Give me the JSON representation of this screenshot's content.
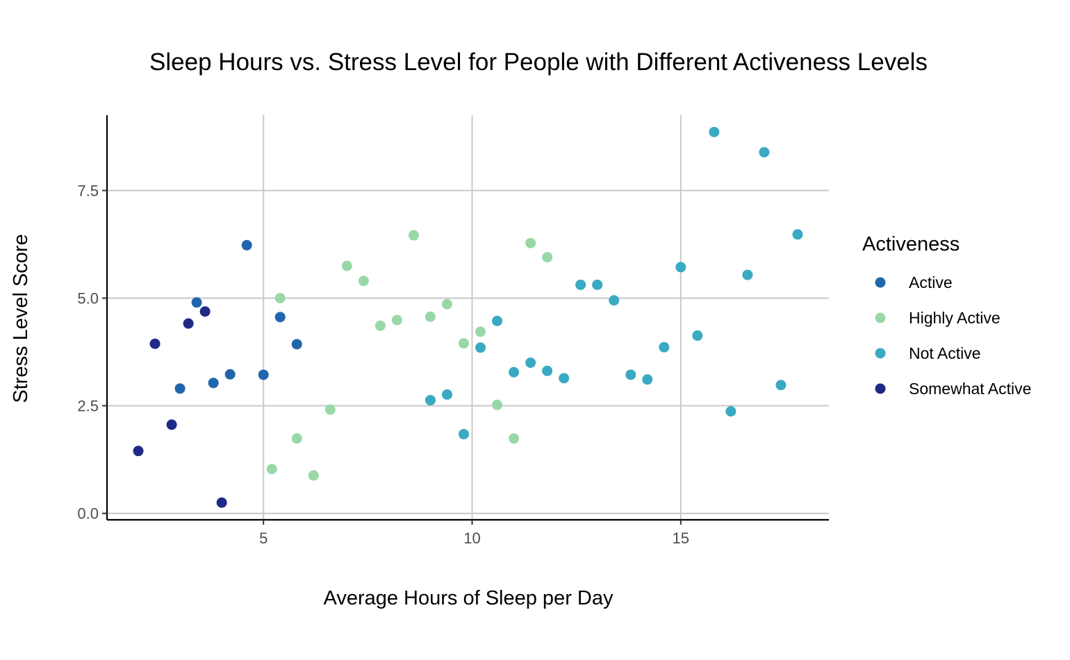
{
  "chart_data": {
    "type": "scatter",
    "title": "Sleep Hours vs. Stress Level for People with Different Activeness Levels",
    "xlabel": "Average Hours of Sleep per Day",
    "ylabel": "Stress Level Score",
    "xlim": [
      1.25,
      18.55
    ],
    "ylim": [
      -0.15,
      9.25
    ],
    "x_ticks": [
      5,
      10,
      15
    ],
    "x_tick_labels": [
      "5",
      "10",
      "15"
    ],
    "y_ticks": [
      0,
      2.5,
      5,
      7.5
    ],
    "y_tick_labels": [
      "0.0",
      "2.5",
      "5.0",
      "7.5"
    ],
    "grid": true,
    "legend": {
      "title": "Activeness",
      "position": "right"
    },
    "series": [
      {
        "name": "Active",
        "color": "#2166ac",
        "points": [
          {
            "x": 3.0,
            "y": 2.9
          },
          {
            "x": 3.4,
            "y": 4.9
          },
          {
            "x": 3.8,
            "y": 3.03
          },
          {
            "x": 4.2,
            "y": 3.23
          },
          {
            "x": 4.6,
            "y": 6.23
          },
          {
            "x": 5.0,
            "y": 3.22
          },
          {
            "x": 5.4,
            "y": 4.56
          },
          {
            "x": 5.8,
            "y": 3.93
          }
        ]
      },
      {
        "name": "Highly Active",
        "color": "#99d8a6",
        "points": [
          {
            "x": 5.2,
            "y": 1.03
          },
          {
            "x": 5.4,
            "y": 5.0
          },
          {
            "x": 5.8,
            "y": 1.74
          },
          {
            "x": 6.2,
            "y": 0.88
          },
          {
            "x": 6.6,
            "y": 2.41
          },
          {
            "x": 7.0,
            "y": 5.75
          },
          {
            "x": 7.4,
            "y": 5.4
          },
          {
            "x": 7.8,
            "y": 4.36
          },
          {
            "x": 8.2,
            "y": 4.49
          },
          {
            "x": 8.6,
            "y": 6.46
          },
          {
            "x": 9.0,
            "y": 4.57
          },
          {
            "x": 9.4,
            "y": 4.86
          },
          {
            "x": 9.8,
            "y": 3.95
          },
          {
            "x": 10.2,
            "y": 4.22
          },
          {
            "x": 10.6,
            "y": 2.52
          },
          {
            "x": 11.0,
            "y": 1.74
          },
          {
            "x": 11.4,
            "y": 6.28
          },
          {
            "x": 11.8,
            "y": 5.95
          }
        ]
      },
      {
        "name": "Not Active",
        "color": "#3aaac2",
        "points": [
          {
            "x": 9.0,
            "y": 2.63
          },
          {
            "x": 9.4,
            "y": 2.76
          },
          {
            "x": 9.8,
            "y": 1.84
          },
          {
            "x": 10.2,
            "y": 3.85
          },
          {
            "x": 10.6,
            "y": 4.47
          },
          {
            "x": 11.0,
            "y": 3.28
          },
          {
            "x": 11.4,
            "y": 3.5
          },
          {
            "x": 11.8,
            "y": 3.31
          },
          {
            "x": 12.2,
            "y": 3.14
          },
          {
            "x": 12.6,
            "y": 5.31
          },
          {
            "x": 13.0,
            "y": 5.31
          },
          {
            "x": 13.4,
            "y": 4.95
          },
          {
            "x": 13.8,
            "y": 3.22
          },
          {
            "x": 14.2,
            "y": 3.11
          },
          {
            "x": 14.6,
            "y": 3.86
          },
          {
            "x": 15.0,
            "y": 5.72
          },
          {
            "x": 15.4,
            "y": 4.13
          },
          {
            "x": 15.8,
            "y": 8.86
          },
          {
            "x": 16.2,
            "y": 2.37
          },
          {
            "x": 16.6,
            "y": 5.54
          },
          {
            "x": 17.0,
            "y": 8.39
          },
          {
            "x": 17.4,
            "y": 2.98
          },
          {
            "x": 17.8,
            "y": 6.48
          }
        ]
      },
      {
        "name": "Somewhat Active",
        "color": "#1f2a87",
        "points": [
          {
            "x": 2.0,
            "y": 1.45
          },
          {
            "x": 2.4,
            "y": 3.94
          },
          {
            "x": 2.8,
            "y": 2.06
          },
          {
            "x": 3.2,
            "y": 4.41
          },
          {
            "x": 3.6,
            "y": 4.69
          },
          {
            "x": 4.0,
            "y": 0.25
          }
        ]
      }
    ]
  }
}
